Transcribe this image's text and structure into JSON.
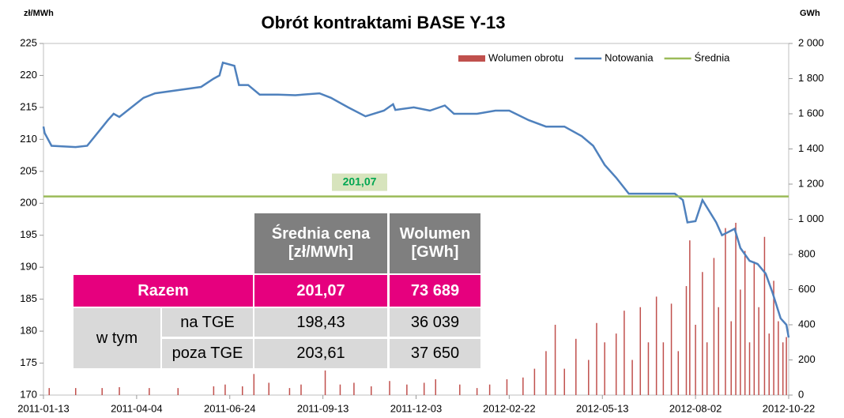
{
  "chart_data": {
    "type": "combo",
    "title": "Obrót kontraktami  BASE  Y-13",
    "ylabel": "zł/MWh",
    "y2label": "GWh",
    "xlim": [
      "2011-01-13",
      "2012-10-22"
    ],
    "xticks": [
      "2011-01-13",
      "2011-04-04",
      "2011-06-24",
      "2011-09-13",
      "2011-12-03",
      "2012-02-22",
      "2012-05-13",
      "2012-08-02",
      "2012-10-22"
    ],
    "ylim": [
      170,
      225
    ],
    "yticks": [
      170,
      175,
      180,
      185,
      190,
      195,
      200,
      205,
      210,
      215,
      220,
      225
    ],
    "y2lim": [
      0,
      2000
    ],
    "y2ticks": [
      0,
      200,
      400,
      600,
      800,
      {
        "value": 1000,
        "label": "1 000"
      },
      {
        "value": 1200,
        "label": "1 200"
      },
      {
        "value": 1400,
        "label": "1 400"
      },
      {
        "value": 1600,
        "label": "1 600"
      },
      {
        "value": 1800,
        "label": "1 800"
      },
      {
        "value": 2000,
        "label": "2 000"
      }
    ],
    "legend": "top-right",
    "series": [
      {
        "name": "Wolumen obrotu",
        "type": "bar",
        "axis": "y2",
        "color": "#c0504d",
        "x": [
          "2011-01-18",
          "2011-02-10",
          "2011-03-05",
          "2011-03-20",
          "2011-04-15",
          "2011-05-10",
          "2011-06-10",
          "2011-06-20",
          "2011-07-05",
          "2011-07-15",
          "2011-07-28",
          "2011-08-15",
          "2011-08-25",
          "2011-09-15",
          "2011-09-28",
          "2011-10-10",
          "2011-10-25",
          "2011-11-10",
          "2011-11-25",
          "2011-12-10",
          "2011-12-20",
          "2012-01-10",
          "2012-01-25",
          "2012-02-05",
          "2012-02-20",
          "2012-03-05",
          "2012-03-15",
          "2012-03-25",
          "2012-04-02",
          "2012-04-10",
          "2012-04-20",
          "2012-05-01",
          "2012-05-08",
          "2012-05-15",
          "2012-05-25",
          "2012-06-01",
          "2012-06-08",
          "2012-06-15",
          "2012-06-22",
          "2012-06-29",
          "2012-07-05",
          "2012-07-12",
          "2012-07-18",
          "2012-07-25",
          "2012-07-28",
          "2012-08-02",
          "2012-08-08",
          "2012-08-12",
          "2012-08-18",
          "2012-08-22",
          "2012-08-28",
          "2012-09-02",
          "2012-09-06",
          "2012-09-10",
          "2012-09-14",
          "2012-09-18",
          "2012-09-22",
          "2012-09-26",
          "2012-10-01",
          "2012-10-05",
          "2012-10-09",
          "2012-10-13",
          "2012-10-17",
          "2012-10-20"
        ],
        "values": [
          40,
          40,
          40,
          45,
          40,
          40,
          50,
          60,
          50,
          120,
          70,
          40,
          60,
          140,
          60,
          70,
          50,
          80,
          60,
          70,
          90,
          60,
          40,
          60,
          90,
          100,
          150,
          250,
          400,
          150,
          320,
          200,
          410,
          300,
          350,
          480,
          200,
          500,
          300,
          560,
          300,
          520,
          250,
          620,
          880,
          400,
          700,
          300,
          780,
          500,
          950,
          420,
          980,
          600,
          820,
          300,
          760,
          500,
          900,
          350,
          650,
          420,
          300,
          330
        ]
      },
      {
        "name": "Notowania",
        "type": "line",
        "color": "#4f81bd",
        "x": [
          "2011-01-13",
          "2011-01-14",
          "2011-01-20",
          "2011-02-10",
          "2011-02-20",
          "2011-03-10",
          "2011-03-15",
          "2011-03-20",
          "2011-04-10",
          "2011-04-20",
          "2011-05-30",
          "2011-06-10",
          "2011-06-15",
          "2011-06-18",
          "2011-06-28",
          "2011-07-02",
          "2011-07-10",
          "2011-07-20",
          "2011-08-05",
          "2011-08-20",
          "2011-09-10",
          "2011-09-20",
          "2011-10-05",
          "2011-10-20",
          "2011-11-05",
          "2011-11-13",
          "2011-11-15",
          "2011-12-01",
          "2011-12-15",
          "2011-12-28",
          "2012-01-05",
          "2012-01-25",
          "2012-02-10",
          "2012-02-22",
          "2012-03-10",
          "2012-03-25",
          "2012-04-10",
          "2012-04-25",
          "2012-05-05",
          "2012-05-15",
          "2012-05-25",
          "2012-06-05",
          "2012-06-25",
          "2012-07-15",
          "2012-07-22",
          "2012-07-26",
          "2012-08-02",
          "2012-08-08",
          "2012-08-20",
          "2012-08-25",
          "2012-09-05",
          "2012-09-10",
          "2012-09-18",
          "2012-09-25",
          "2012-10-02",
          "2012-10-08",
          "2012-10-15",
          "2012-10-20",
          "2012-10-22"
        ],
        "values": [
          212,
          211,
          209,
          208.8,
          209,
          213,
          214,
          213.5,
          216.5,
          217.2,
          218.2,
          219.5,
          220,
          222,
          221.5,
          218.5,
          218.5,
          217,
          217,
          216.9,
          217.2,
          216.5,
          215,
          213.6,
          214.5,
          215.5,
          214.6,
          215,
          214.5,
          215.3,
          214,
          214,
          214.5,
          214.5,
          213,
          212,
          212,
          210.5,
          209,
          206,
          204,
          201.5,
          201.5,
          201.5,
          200.5,
          197,
          197.2,
          200.5,
          197,
          195,
          196,
          193,
          191,
          190.5,
          189,
          186,
          182,
          181,
          179
        ]
      },
      {
        "name": "Średnia",
        "type": "hline",
        "color": "#9bbb59",
        "values": [
          201.07
        ],
        "value_labels": [
          "201,07"
        ]
      }
    ]
  },
  "table": {
    "headers": [
      [
        "Średnia cena",
        "[zł/MWh]"
      ],
      [
        "Wolumen",
        "[GWh]"
      ]
    ],
    "total": [
      "Razem",
      "201,07",
      "73 689"
    ],
    "group": "w tym",
    "rows": [
      [
        "na TGE",
        "198,43",
        "36 039"
      ],
      [
        "poza TGE",
        "203,61",
        "37 650"
      ]
    ]
  }
}
